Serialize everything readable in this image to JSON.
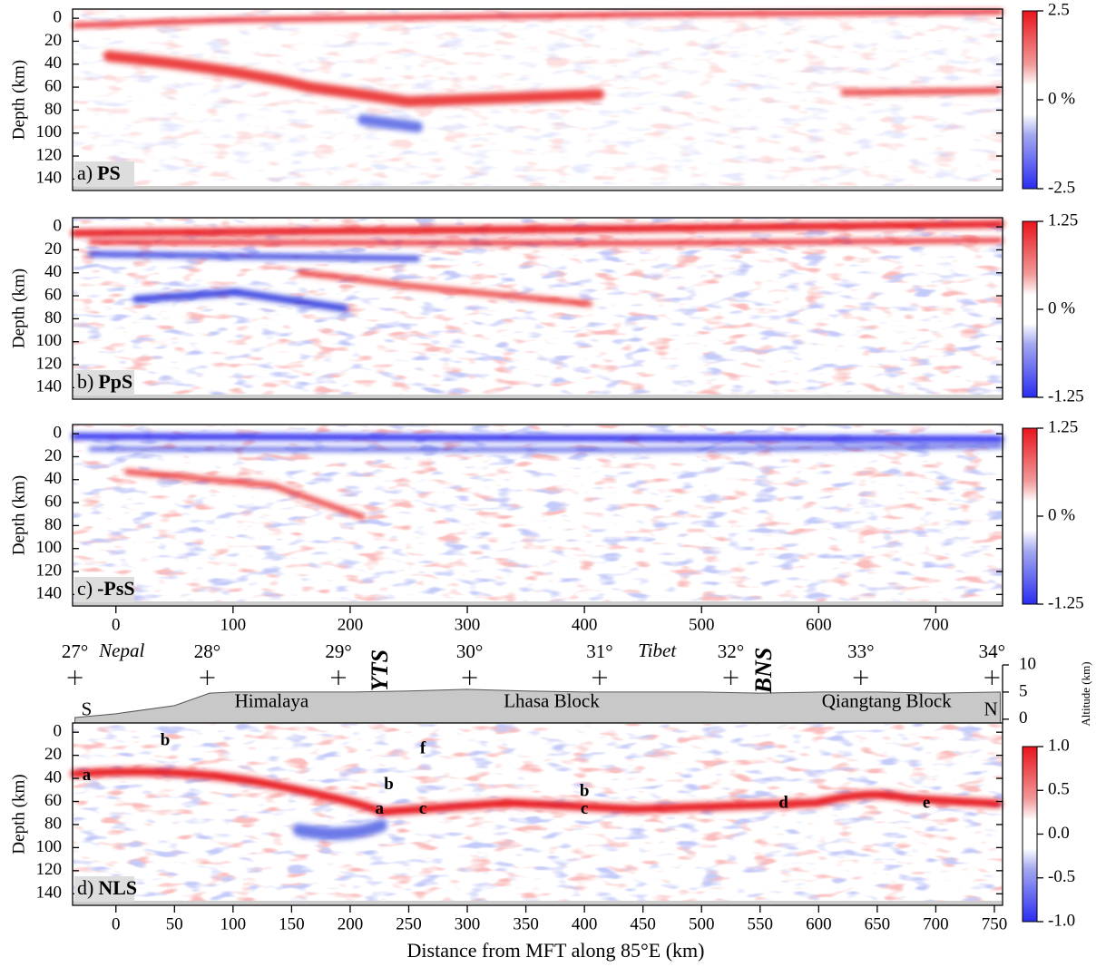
{
  "chart_data": [
    {
      "type": "heatmap",
      "label": "a)",
      "title": "PS",
      "ylabel": "Depth (km)",
      "xlim": [
        -37,
        757
      ],
      "ylim": [
        -8,
        150
      ],
      "yticks": [
        0,
        20,
        40,
        60,
        80,
        100,
        120,
        140
      ],
      "clim": [
        -2.5,
        2.5
      ],
      "cticks": [
        2.5,
        {
          "value": 0,
          "label": "0 %"
        },
        -2.5
      ]
    },
    {
      "type": "heatmap",
      "label": "b)",
      "title": "PpS",
      "ylabel": "Depth (km)",
      "xlim": [
        -37,
        757
      ],
      "ylim": [
        -8,
        150
      ],
      "yticks": [
        0,
        20,
        40,
        60,
        80,
        100,
        120,
        140
      ],
      "clim": [
        -1.25,
        1.25
      ],
      "cticks": [
        1.25,
        {
          "value": 0,
          "label": "0 %"
        },
        -1.25
      ]
    },
    {
      "type": "heatmap",
      "label": "c)",
      "title": "-PsS",
      "ylabel": "Depth (km)",
      "xlim": [
        -37,
        757
      ],
      "ylim": [
        -8,
        150
      ],
      "yticks": [
        0,
        20,
        40,
        60,
        80,
        100,
        120,
        140
      ],
      "xticks": [
        0,
        100,
        200,
        300,
        400,
        500,
        600,
        700
      ],
      "clim": [
        -1.25,
        1.25
      ],
      "cticks": [
        1.25,
        {
          "value": 0,
          "label": "0 %"
        },
        -1.25
      ]
    },
    {
      "type": "area",
      "xlim": [
        -37,
        757
      ],
      "ylim": [
        -0.7,
        10
      ],
      "x": [
        -35,
        0,
        50,
        80,
        100,
        150,
        200,
        250,
        300,
        350,
        400,
        450,
        500,
        550,
        600,
        650,
        700,
        755
      ],
      "values": [
        0.3,
        1,
        2.5,
        4.8,
        5,
        5,
        5,
        5.2,
        5.5,
        5.2,
        5,
        5,
        5,
        4.8,
        5,
        5,
        4.8,
        5
      ],
      "y2label": "Altitude (km)",
      "y2ticks": [
        0,
        5,
        10
      ],
      "lat_ticks": [
        {
          "value": -35,
          "label": "27°"
        },
        {
          "value": 78,
          "label": "28°"
        },
        {
          "value": 190,
          "label": "29°"
        },
        {
          "value": 302,
          "label": "30°"
        },
        {
          "value": 413,
          "label": "31°"
        },
        {
          "value": 525,
          "label": "32°"
        },
        {
          "value": 636,
          "label": "33°"
        },
        {
          "value": 748,
          "label": "34°"
        }
      ],
      "annotations": [
        {
          "text": "Nepal",
          "x": 5,
          "y": 12.3,
          "style": "italic"
        },
        {
          "text": "Tibet",
          "x": 462,
          "y": 12.3,
          "style": "italic"
        },
        {
          "text": "YTS",
          "x": 227,
          "y": 9,
          "style": "rotated"
        },
        {
          "text": "BNS",
          "x": 555,
          "y": 9,
          "style": "rotated"
        },
        {
          "text": "Himalaya",
          "x": 133,
          "y": 3,
          "style": "plain"
        },
        {
          "text": "Lhasa Block",
          "x": 372,
          "y": 3,
          "style": "plain"
        },
        {
          "text": "Qiangtang Block",
          "x": 658,
          "y": 3,
          "style": "plain"
        },
        {
          "text": "S",
          "x": -25,
          "y": 1.5,
          "style": "plain"
        },
        {
          "text": "N",
          "x": 747,
          "y": 1.5,
          "style": "plain"
        }
      ]
    },
    {
      "type": "heatmap",
      "label": "d)",
      "title": "NLS",
      "ylabel": "Depth (km)",
      "xlabel": "Distance from MFT along 85°E (km)",
      "xlim": [
        -37,
        757
      ],
      "ylim": [
        -8,
        150
      ],
      "yticks": [
        0,
        20,
        40,
        60,
        80,
        100,
        120,
        140
      ],
      "xticks": [
        0,
        50,
        100,
        150,
        200,
        250,
        300,
        350,
        400,
        450,
        500,
        550,
        600,
        650,
        700,
        750
      ],
      "clim": [
        -1,
        1
      ],
      "cticks": [
        {
          "value": 1,
          "label": "1.0"
        },
        0.5,
        {
          "value": 0,
          "label": "0.0"
        },
        -0.5,
        {
          "value": -1,
          "label": "-1.0"
        }
      ],
      "annotations": [
        {
          "text": "a",
          "x": -25,
          "y": 38
        },
        {
          "text": "b",
          "x": 42,
          "y": 8
        },
        {
          "text": "f",
          "x": 262,
          "y": 15
        },
        {
          "text": "b",
          "x": 233,
          "y": 46
        },
        {
          "text": "b",
          "x": 400,
          "y": 52
        },
        {
          "text": "a",
          "x": 225,
          "y": 67
        },
        {
          "text": "c",
          "x": 262,
          "y": 67
        },
        {
          "text": "c",
          "x": 400,
          "y": 67
        },
        {
          "text": "d",
          "x": 570,
          "y": 62
        },
        {
          "text": "e",
          "x": 692,
          "y": 62
        }
      ]
    }
  ]
}
